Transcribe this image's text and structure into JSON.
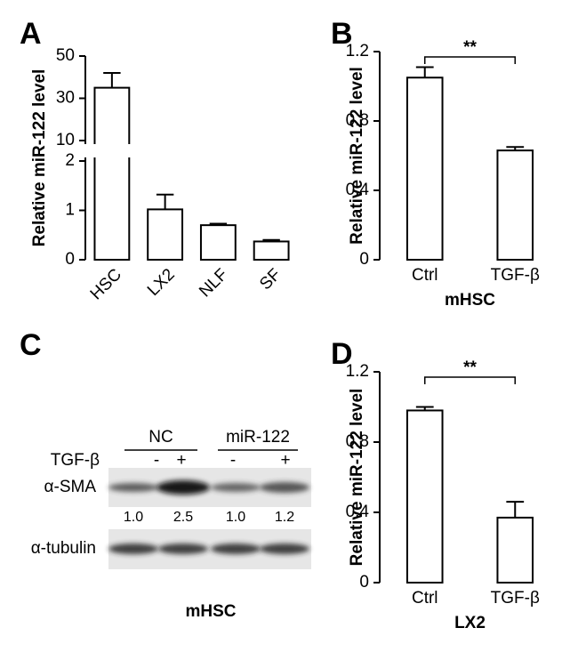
{
  "chart_data": [
    {
      "panel": "A",
      "type": "bar",
      "categories": [
        "HSC",
        "LX2",
        "NLF",
        "SF"
      ],
      "values": [
        35,
        1.02,
        0.7,
        0.37
      ],
      "errors": [
        7,
        0.3,
        0.03,
        0.03
      ],
      "ylabel": "Relative miR-122 level",
      "ylim": [
        0,
        50
      ],
      "ybreak": [
        2,
        10
      ],
      "yticks": [
        0,
        1,
        2,
        10,
        30,
        50
      ],
      "color": "#ffffff",
      "rotate_labels": true
    },
    {
      "panel": "B",
      "type": "bar",
      "categories": [
        "Ctrl",
        "TGF-β"
      ],
      "values": [
        1.05,
        0.63
      ],
      "errors": [
        0.06,
        0.02
      ],
      "ylabel": "Relative miR-122 level",
      "xlabel": "mHSC",
      "ylim": [
        0,
        1.2
      ],
      "yticks": [
        0,
        0.4,
        0.8,
        1.2
      ],
      "color": "#ffffff",
      "significance": "**"
    },
    {
      "panel": "D",
      "type": "bar",
      "categories": [
        "Ctrl",
        "TGF-β"
      ],
      "values": [
        0.98,
        0.37
      ],
      "errors": [
        0.02,
        0.09
      ],
      "ylabel": "Relative miR-122 level",
      "xlabel": "LX2",
      "ylim": [
        0,
        1.2
      ],
      "yticks": [
        0,
        0.4,
        0.8,
        1.2
      ],
      "color": "#ffffff",
      "significance": "**"
    }
  ],
  "blot": {
    "panel": "C",
    "groups": [
      "NC",
      "miR-122"
    ],
    "treatment_label": "TGF-β",
    "treatments": [
      "-",
      "+",
      "-",
      "+"
    ],
    "rows": [
      "α-SMA",
      "α-tubulin"
    ],
    "quantification": [
      "1.0",
      "2.5",
      "1.0",
      "1.2"
    ],
    "caption": "mHSC"
  }
}
